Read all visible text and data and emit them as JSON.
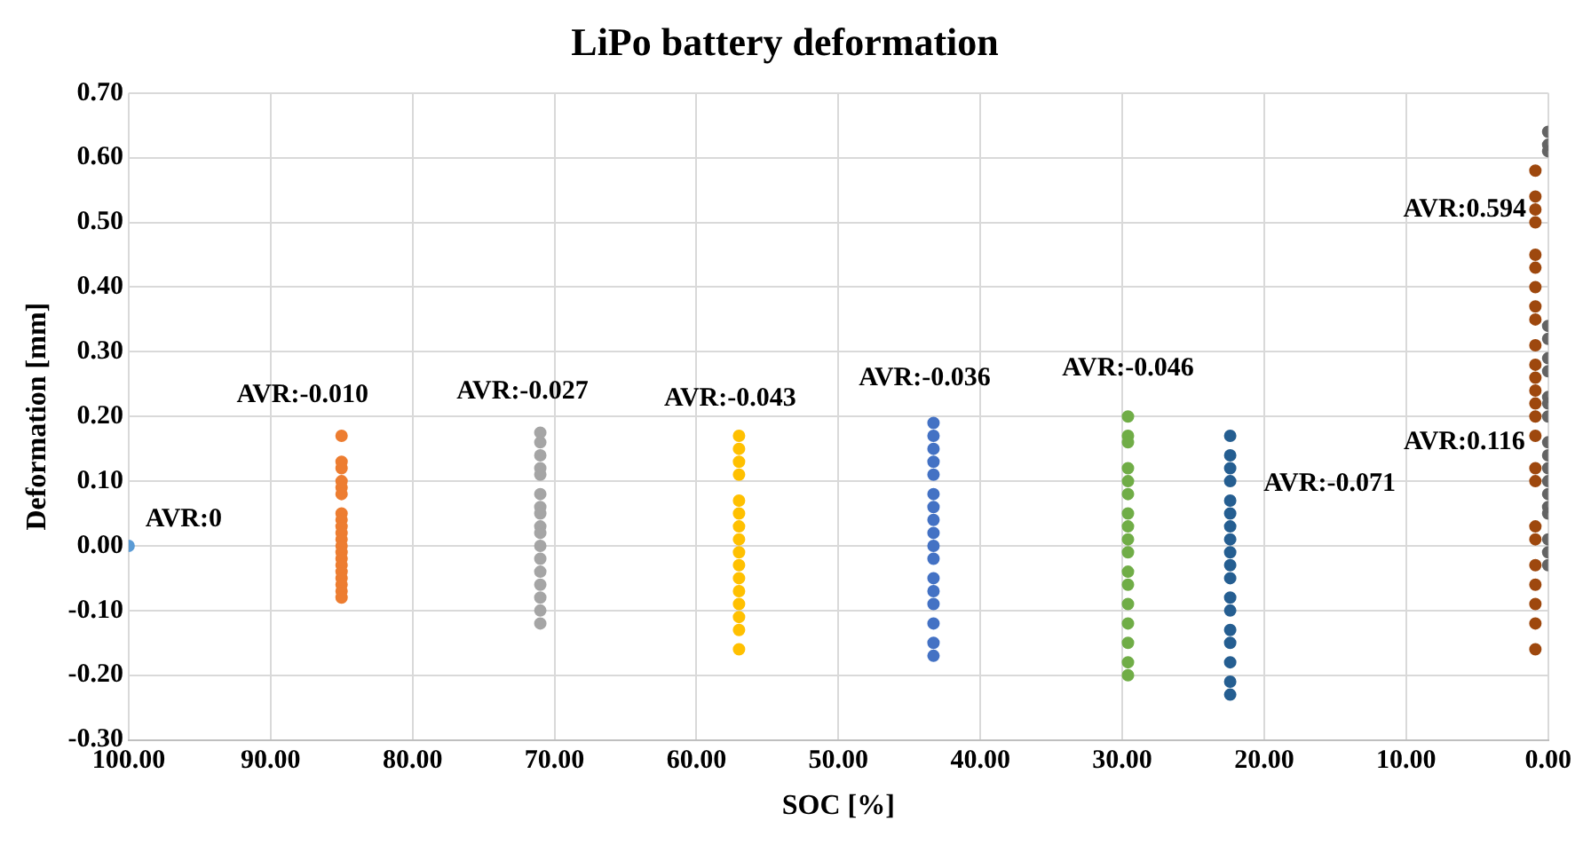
{
  "chart_data": {
    "type": "scatter",
    "title": "LiPo battery deformation",
    "xlabel": "SOC [%]",
    "ylabel": "Deformation [mm]",
    "xlim": [
      100,
      0
    ],
    "xticks": [
      {
        "value": 100,
        "label": "100.00"
      },
      {
        "value": 90,
        "label": "90.00"
      },
      {
        "value": 80,
        "label": "80.00"
      },
      {
        "value": 70,
        "label": "70.00"
      },
      {
        "value": 60,
        "label": "60.00"
      },
      {
        "value": 50,
        "label": "50.00"
      },
      {
        "value": 40,
        "label": "40.00"
      },
      {
        "value": 30,
        "label": "30.00"
      },
      {
        "value": 20,
        "label": "20.00"
      },
      {
        "value": 10,
        "label": "10.00"
      },
      {
        "value": 0,
        "label": "0.00"
      }
    ],
    "ylim": [
      -0.3,
      0.7
    ],
    "yticks": [
      {
        "value": -0.3,
        "label": "-0.30"
      },
      {
        "value": -0.2,
        "label": "-0.20"
      },
      {
        "value": -0.1,
        "label": "-0.10"
      },
      {
        "value": 0,
        "label": "0.00"
      },
      {
        "value": 0.1,
        "label": "0.10"
      },
      {
        "value": 0.2,
        "label": "0.20"
      },
      {
        "value": 0.3,
        "label": "0.30"
      },
      {
        "value": 0.4,
        "label": "0.40"
      },
      {
        "value": 0.5,
        "label": "0.50"
      },
      {
        "value": 0.6,
        "label": "0.60"
      },
      {
        "value": 0.7,
        "label": "0.70"
      }
    ],
    "grid": true,
    "marker": "circle",
    "series": [
      {
        "color": "#5b9bd5",
        "x": [
          100
        ],
        "values": [
          0
        ]
      },
      {
        "color": "#ed7d31",
        "x": [
          85,
          85,
          85,
          85,
          85,
          85,
          85,
          85,
          85,
          85,
          85,
          85,
          85,
          85,
          85,
          85,
          85,
          85,
          85,
          85
        ],
        "values": [
          0.17,
          0.13,
          0.12,
          0.1,
          0.09,
          0.08,
          0.05,
          0.04,
          0.03,
          0.02,
          0.01,
          0,
          -0.01,
          -0.02,
          -0.03,
          -0.04,
          -0.05,
          -0.06,
          -0.07,
          -0.08
        ]
      },
      {
        "color": "#a5a5a5",
        "x": [
          71,
          71,
          71,
          71,
          71,
          71,
          71,
          71,
          71,
          71,
          71,
          71,
          71,
          71,
          71,
          71,
          71
        ],
        "values": [
          0.175,
          0.16,
          0.14,
          0.12,
          0.11,
          0.08,
          0.06,
          0.05,
          0.03,
          0.02,
          0,
          -0.02,
          -0.04,
          -0.06,
          -0.08,
          -0.1,
          -0.12
        ]
      },
      {
        "color": "#ffc000",
        "x": [
          57,
          57,
          57,
          57,
          57,
          57,
          57,
          57,
          57,
          57,
          57,
          57,
          57,
          57,
          57,
          57
        ],
        "values": [
          0.17,
          0.15,
          0.13,
          0.11,
          0.07,
          0.05,
          0.03,
          0.01,
          -0.01,
          -0.03,
          -0.05,
          -0.07,
          -0.09,
          -0.11,
          -0.13,
          -0.16
        ]
      },
      {
        "color": "#4472c4",
        "x": [
          43.3,
          43.3,
          43.3,
          43.3,
          43.3,
          43.3,
          43.3,
          43.3,
          43.3,
          43.3,
          43.3,
          43.3,
          43.3,
          43.3,
          43.3,
          43.3,
          43.3
        ],
        "values": [
          0.19,
          0.17,
          0.15,
          0.13,
          0.11,
          0.08,
          0.06,
          0.04,
          0.02,
          0,
          -0.02,
          -0.05,
          -0.07,
          -0.09,
          -0.12,
          -0.15,
          -0.17
        ]
      },
      {
        "color": "#70ad47",
        "x": [
          29.6,
          29.6,
          29.6,
          29.6,
          29.6,
          29.6,
          29.6,
          29.6,
          29.6,
          29.6,
          29.6,
          29.6,
          29.6,
          29.6,
          29.6,
          29.6,
          29.6
        ],
        "values": [
          0.2,
          0.17,
          0.16,
          0.12,
          0.1,
          0.08,
          0.05,
          0.03,
          0.01,
          -0.01,
          -0.04,
          -0.06,
          -0.09,
          -0.12,
          -0.15,
          -0.18,
          -0.2
        ]
      },
      {
        "color": "#255e91",
        "x": [
          22.4,
          22.4,
          22.4,
          22.4,
          22.4,
          22.4,
          22.4,
          22.4,
          22.4,
          22.4,
          22.4,
          22.4,
          22.4,
          22.4,
          22.4,
          22.4,
          22.4,
          22.4
        ],
        "values": [
          0.17,
          0.14,
          0.12,
          0.1,
          0.07,
          0.05,
          0.03,
          0.01,
          -0.01,
          -0.03,
          -0.05,
          -0.08,
          -0.1,
          -0.13,
          -0.15,
          -0.18,
          -0.21,
          -0.23
        ]
      },
      {
        "color": "#9e480e",
        "x": [
          0.9,
          0.9,
          0.9,
          0.9,
          0.9,
          0.9,
          0.9,
          0.9,
          0.9,
          0.9,
          0.9,
          0.9,
          0.9,
          0.9,
          0.9,
          0.9,
          0.9,
          0.9,
          0.9,
          0.9,
          0.9,
          0.9,
          0.9,
          0.9,
          0.9
        ],
        "values": [
          0.58,
          0.54,
          0.52,
          0.5,
          0.45,
          0.43,
          0.4,
          0.37,
          0.35,
          0.31,
          0.28,
          0.26,
          0.24,
          0.22,
          0.2,
          0.17,
          0.12,
          0.1,
          0.03,
          0.01,
          -0.03,
          -0.06,
          -0.09,
          -0.12,
          -0.16
        ]
      },
      {
        "color": "#636363",
        "x": [
          0,
          0,
          0,
          0,
          0,
          0,
          0,
          0,
          0,
          0,
          0,
          0,
          0,
          0,
          0,
          0,
          0,
          0,
          0,
          0
        ],
        "values": [
          0.64,
          0.62,
          0.61,
          0.34,
          0.32,
          0.29,
          0.27,
          0.23,
          0.22,
          0.2,
          0.16,
          0.14,
          0.12,
          0.1,
          0.08,
          0.06,
          0.05,
          0.01,
          -0.01,
          -0.03
        ]
      }
    ],
    "annotations": [
      "AVR:0",
      "AVR:-0.010",
      "AVR:-0.027",
      "AVR:-0.043",
      "AVR:-0.036",
      "AVR:-0.046",
      "AVR:-0.071",
      "AVR:0.116",
      "AVR:0.594"
    ]
  }
}
